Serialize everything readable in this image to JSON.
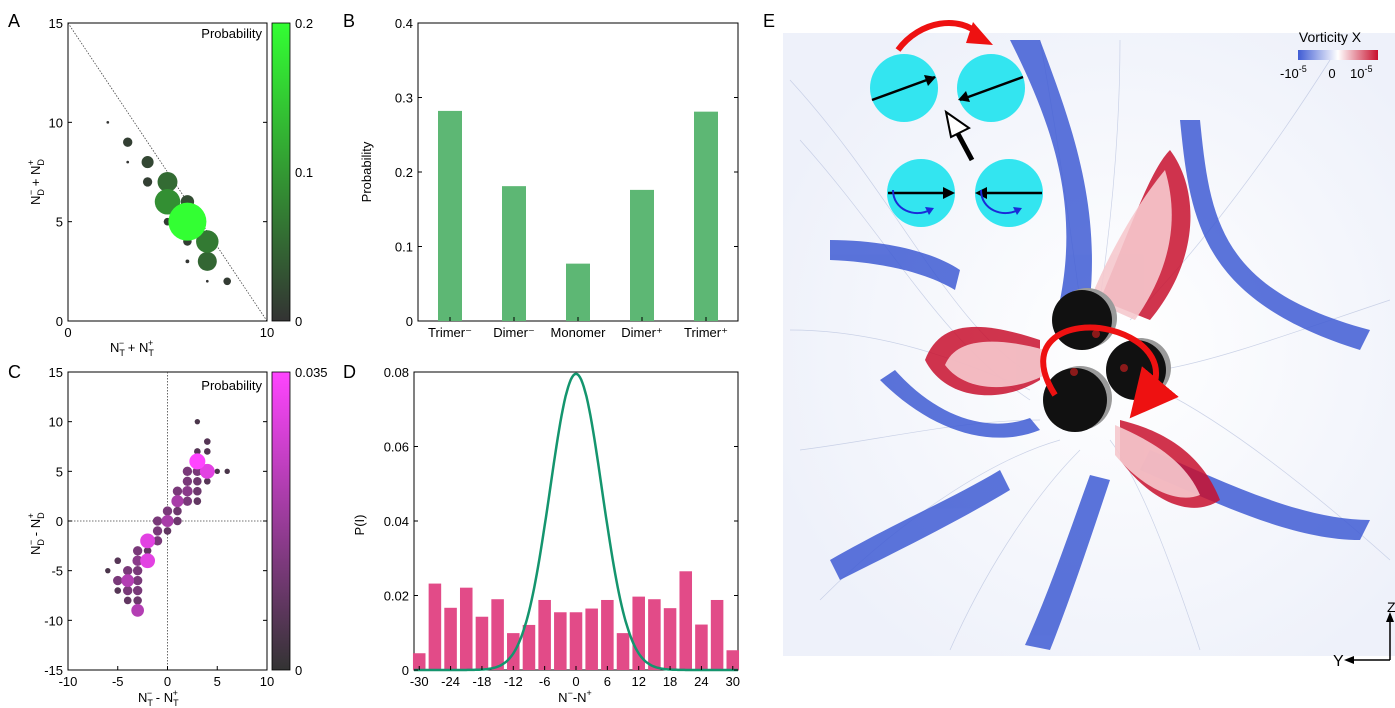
{
  "panel_labels": [
    "A",
    "B",
    "C",
    "D",
    "E"
  ],
  "chart_data": [
    {
      "panel": "A",
      "type": "scatter",
      "legend_title": "Probability",
      "xlabel": "Nᵀ⁻ + Nᵀ⁺",
      "ylabel": "Nᴰ⁻ + Nᴰ⁺",
      "xlabel_html": [
        "N",
        "T",
        "−",
        "+",
        "N",
        "T",
        "+"
      ],
      "xlim": [
        0,
        10
      ],
      "ylim": [
        0,
        15
      ],
      "xticks": [
        "0",
        "10"
      ],
      "yticks": [
        "0",
        "5",
        "10",
        "15"
      ],
      "colorbar": {
        "min": 0,
        "max": 0.2,
        "ticks": [
          "0",
          "0.1",
          "0.2"
        ],
        "color_low": "#333333",
        "color_high": "#33ff33"
      },
      "diagonal_line": true,
      "points": [
        {
          "x": 3,
          "y": 9,
          "p": 0.012
        },
        {
          "x": 3,
          "y": 8,
          "p": 0.001
        },
        {
          "x": 4,
          "y": 8,
          "p": 0.02
        },
        {
          "x": 4,
          "y": 7,
          "p": 0.012
        },
        {
          "x": 5,
          "y": 7,
          "p": 0.055
        },
        {
          "x": 6,
          "y": 6,
          "p": 0.025
        },
        {
          "x": 5,
          "y": 6,
          "p": 0.09
        },
        {
          "x": 6,
          "y": 5,
          "p": 0.2
        },
        {
          "x": 5,
          "y": 5,
          "p": 0.008
        },
        {
          "x": 6,
          "y": 4,
          "p": 0.01
        },
        {
          "x": 7,
          "y": 4,
          "p": 0.07
        },
        {
          "x": 7,
          "y": 3,
          "p": 0.05
        },
        {
          "x": 6,
          "y": 3,
          "p": 0.002
        },
        {
          "x": 8,
          "y": 2,
          "p": 0.008
        },
        {
          "x": 7,
          "y": 2,
          "p": 0.001
        },
        {
          "x": 2,
          "y": 10,
          "p": 0.001
        }
      ]
    },
    {
      "panel": "B",
      "type": "bar",
      "ylabel": "Probability",
      "categories": [
        "Trimer⁻",
        "Dimer⁻",
        "Monomer",
        "Dimer⁺",
        "Trimer⁺"
      ],
      "values": [
        0.282,
        0.181,
        0.077,
        0.176,
        0.281
      ],
      "ylim": [
        0,
        0.4
      ],
      "yticks": [
        "0",
        "0.1",
        "0.2",
        "0.3",
        "0.4"
      ],
      "bar_color": "#5db774"
    },
    {
      "panel": "C",
      "type": "scatter",
      "legend_title": "Probability",
      "xlabel": "Nᵀ⁻ - Nᵀ⁺",
      "ylabel": "Nᴰ⁻ - Nᴰ⁺",
      "xlim": [
        -10,
        10
      ],
      "ylim": [
        -15,
        15
      ],
      "xticks": [
        "-10",
        "-5",
        "0",
        "5",
        "10"
      ],
      "yticks": [
        "-15",
        "-10",
        "-5",
        "0",
        "5",
        "10",
        "15"
      ],
      "colorbar": {
        "min": 0,
        "max": 0.035,
        "ticks": [
          "0",
          "0.035"
        ],
        "color_low": "#333333",
        "color_high": "#ff44ff"
      },
      "reference_lines": [
        0
      ],
      "points": [
        {
          "x": 3,
          "y": 6,
          "p": 0.035
        },
        {
          "x": 4,
          "y": 5,
          "p": 0.03
        },
        {
          "x": 2,
          "y": 5,
          "p": 0.012
        },
        {
          "x": 3,
          "y": 5,
          "p": 0.012
        },
        {
          "x": 2,
          "y": 4,
          "p": 0.012
        },
        {
          "x": 3,
          "y": 4,
          "p": 0.01
        },
        {
          "x": 4,
          "y": 4,
          "p": 0.006
        },
        {
          "x": 5,
          "y": 5,
          "p": 0.004
        },
        {
          "x": 1,
          "y": 3,
          "p": 0.012
        },
        {
          "x": 2,
          "y": 3,
          "p": 0.015
        },
        {
          "x": 3,
          "y": 3,
          "p": 0.01
        },
        {
          "x": 1,
          "y": 2,
          "p": 0.02
        },
        {
          "x": 2,
          "y": 2,
          "p": 0.012
        },
        {
          "x": 3,
          "y": 2,
          "p": 0.008
        },
        {
          "x": 0,
          "y": 1,
          "p": 0.012
        },
        {
          "x": 1,
          "y": 1,
          "p": 0.01
        },
        {
          "x": 0,
          "y": 0,
          "p": 0.02
        },
        {
          "x": -1,
          "y": 0,
          "p": 0.012
        },
        {
          "x": 1,
          "y": 0,
          "p": 0.01
        },
        {
          "x": -1,
          "y": -1,
          "p": 0.012
        },
        {
          "x": 0,
          "y": -1,
          "p": 0.008
        },
        {
          "x": -2,
          "y": -2,
          "p": 0.03
        },
        {
          "x": -1,
          "y": -2,
          "p": 0.012
        },
        {
          "x": -3,
          "y": -3,
          "p": 0.012
        },
        {
          "x": -2,
          "y": -3,
          "p": 0.008
        },
        {
          "x": -2,
          "y": -4,
          "p": 0.03
        },
        {
          "x": -3,
          "y": -4,
          "p": 0.015
        },
        {
          "x": -4,
          "y": -5,
          "p": 0.012
        },
        {
          "x": -3,
          "y": -5,
          "p": 0.012
        },
        {
          "x": -4,
          "y": -6,
          "p": 0.022
        },
        {
          "x": -5,
          "y": -6,
          "p": 0.012
        },
        {
          "x": -3,
          "y": -6,
          "p": 0.012
        },
        {
          "x": -4,
          "y": -7,
          "p": 0.012
        },
        {
          "x": -3,
          "y": -7,
          "p": 0.012
        },
        {
          "x": -5,
          "y": -7,
          "p": 0.006
        },
        {
          "x": -3,
          "y": -8,
          "p": 0.01
        },
        {
          "x": -4,
          "y": -8,
          "p": 0.008
        },
        {
          "x": -3,
          "y": -9,
          "p": 0.022
        },
        {
          "x": -6,
          "y": -5,
          "p": 0.004
        },
        {
          "x": -5,
          "y": -4,
          "p": 0.006
        },
        {
          "x": 3,
          "y": 10,
          "p": 0.004
        },
        {
          "x": 4,
          "y": 8,
          "p": 0.006
        },
        {
          "x": 4,
          "y": 7,
          "p": 0.006
        },
        {
          "x": 3,
          "y": 7,
          "p": 0.006
        },
        {
          "x": 6,
          "y": 5,
          "p": 0.004
        }
      ]
    },
    {
      "panel": "D",
      "type": "bar",
      "ylabel": "P(I)",
      "xlabel": "N⁻-N⁺",
      "xlim": [
        -31,
        31
      ],
      "ylim": [
        0,
        0.08
      ],
      "xticks": [
        "-30",
        "-24",
        "-18",
        "-12",
        "-6",
        "0",
        "6",
        "12",
        "18",
        "24",
        "30"
      ],
      "yticks": [
        "0",
        "0.02",
        "0.04",
        "0.06",
        "0.08"
      ],
      "bar_color": "#e24b88",
      "bars": [
        {
          "x": -30,
          "y": 0.0045
        },
        {
          "x": -27,
          "y": 0.0232
        },
        {
          "x": -24,
          "y": 0.0167
        },
        {
          "x": -21,
          "y": 0.0221
        },
        {
          "x": -18,
          "y": 0.0143
        },
        {
          "x": -15,
          "y": 0.019
        },
        {
          "x": -12,
          "y": 0.0099
        },
        {
          "x": -9,
          "y": 0.0121
        },
        {
          "x": -6,
          "y": 0.0188
        },
        {
          "x": -3,
          "y": 0.0155
        },
        {
          "x": 0,
          "y": 0.0155
        },
        {
          "x": 3,
          "y": 0.0165
        },
        {
          "x": 6,
          "y": 0.0188
        },
        {
          "x": 9,
          "y": 0.0099
        },
        {
          "x": 12,
          "y": 0.0197
        },
        {
          "x": 15,
          "y": 0.019
        },
        {
          "x": 18,
          "y": 0.0166
        },
        {
          "x": 21,
          "y": 0.0265
        },
        {
          "x": 24,
          "y": 0.0122
        },
        {
          "x": 27,
          "y": 0.0188
        },
        {
          "x": 30,
          "y": 0.0053
        }
      ],
      "curve": {
        "mean": 0,
        "sd": 5.0,
        "peak": 0.0795,
        "color": "#14956e"
      }
    }
  ],
  "panel_E": {
    "colorbar_title": "Vorticity X",
    "colorbar_ticks": [
      "-10",
      "0",
      "10"
    ],
    "colorbar_exponent": "-5",
    "colorbar_exponent_high": "-5",
    "axis_labels": [
      "Y",
      "Z"
    ],
    "colors": {
      "negative": "#3f5cd4",
      "positive": "#c8102e",
      "particle": "#111111",
      "inset_sphere": "#33e5f0",
      "arrow": "#ee1111"
    }
  }
}
